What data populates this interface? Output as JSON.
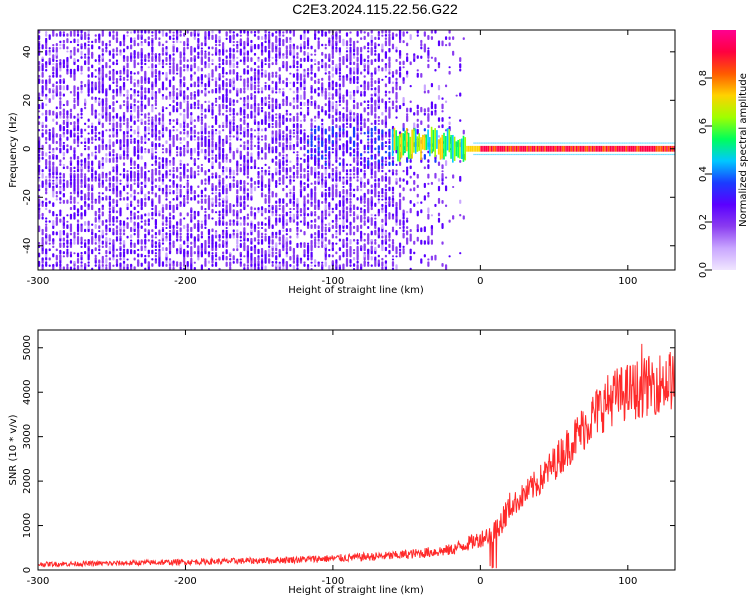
{
  "title": "C2E3.2024.115.22.56.G22",
  "colors": {
    "snr_line": "#ff2a2a",
    "axis": "#000000",
    "colormap": [
      "#f0e6ff",
      "#c9a6ff",
      "#8a3cf0",
      "#5a00ff",
      "#1a3cff",
      "#00c8ff",
      "#00ff5a",
      "#a0ff00",
      "#ffd200",
      "#ff5a00",
      "#ff0040",
      "#ff0090"
    ]
  },
  "chart_data": [
    {
      "type": "heatmap",
      "xlabel": "Height of straight line (km)",
      "ylabel": "Frequency (Hz)",
      "xlim": [
        -300,
        132
      ],
      "ylim": [
        -50,
        49
      ],
      "xticks": [
        "-300",
        "-200",
        "-100",
        "0",
        "100"
      ],
      "yticks": [
        "-40",
        "-20",
        "0",
        "20",
        "40"
      ],
      "colorbar": {
        "label": "Normalized spectral amplitude",
        "range": [
          0,
          1
        ],
        "ticks": [
          "0.0",
          "0.2",
          "0.4",
          "0.6",
          "0.8"
        ]
      },
      "features": {
        "noise_region_x": [
          -300,
          -20
        ],
        "signal_line_x": [
          -60,
          132
        ],
        "signal_line_freq": 0,
        "signal_peak_amplitude": 0.92
      }
    },
    {
      "type": "line",
      "xlabel": "Height of straight line (km)",
      "ylabel": "SNR (10 * v/v)",
      "xlim": [
        -300,
        132
      ],
      "ylim": [
        0,
        5400
      ],
      "xticks": [
        "-300",
        "-200",
        "-100",
        "0",
        "100"
      ],
      "yticks": [
        "0",
        "1000",
        "2000",
        "3000",
        "4000",
        "5000"
      ],
      "series": [
        {
          "x": [
            -300,
            -250,
            -200,
            -150,
            -100,
            -60,
            -40,
            -20,
            0,
            10,
            20,
            30,
            40,
            50,
            60,
            70,
            80,
            90,
            100,
            110,
            120,
            132
          ],
          "y": [
            130,
            150,
            180,
            210,
            260,
            320,
            380,
            450,
            700,
            900,
            1400,
            1700,
            2000,
            2400,
            2800,
            3200,
            3600,
            3900,
            4000,
            4100,
            4200,
            4300
          ]
        }
      ]
    }
  ]
}
